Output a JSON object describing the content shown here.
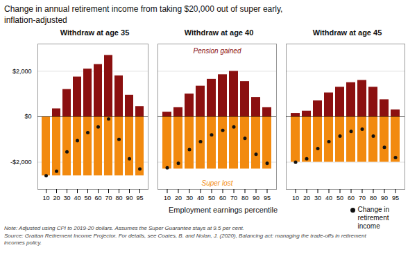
{
  "chart_data": {
    "type": "bar",
    "title": "Change in annual retirement income from taking $20,000 out of super early,\ninflation-adjusted",
    "xlabel": "Employment earnings percentile",
    "categories": [
      10,
      20,
      30,
      40,
      50,
      60,
      70,
      80,
      90,
      95
    ],
    "panels": [
      {
        "subtitle": "Withdraw at age 35",
        "series": [
          {
            "name": "Super lost",
            "color": "#F28A0F",
            "values": [
              -2600,
              -2600,
              -2600,
              -2600,
              -2600,
              -2600,
              -2600,
              -2600,
              -2600,
              -2600
            ]
          },
          {
            "name": "Pension gained",
            "color": "#8B1010",
            "values": [
              0,
              350,
              1200,
              1750,
              2100,
              2300,
              2700,
              1800,
              950,
              450
            ]
          },
          {
            "name": "Change in\nretirement income",
            "type": "scatter",
            "color": "#111111",
            "values": [
              -2600,
              -2400,
              -1550,
              -1050,
              -700,
              -450,
              -100,
              -1000,
              -1850,
              -2300
            ]
          }
        ]
      },
      {
        "subtitle": "Withdraw at age 40",
        "series": [
          {
            "name": "Super lost",
            "color": "#F28A0F",
            "values": [
              -2300,
              -2300,
              -2300,
              -2300,
              -2300,
              -2300,
              -2300,
              -2300,
              -2300,
              -2300
            ]
          },
          {
            "name": "Pension gained",
            "color": "#8B1010",
            "values": [
              200,
              400,
              1000,
              1350,
              1650,
              1850,
              2000,
              1550,
              850,
              400
            ]
          },
          {
            "name": "Change in\nretirement income",
            "type": "scatter",
            "color": "#111111",
            "values": [
              -2250,
              -2050,
              -1450,
              -1100,
              -800,
              -600,
              -450,
              -950,
              -1650,
              -2050
            ]
          }
        ]
      },
      {
        "subtitle": "Withdraw at age 45",
        "series": [
          {
            "name": "Super lost",
            "color": "#F28A0F",
            "values": [
              -2000,
              -2000,
              -2000,
              -2000,
              -2000,
              -2000,
              -2000,
              -2000,
              -2000,
              -2000
            ]
          },
          {
            "name": "Pension gained",
            "color": "#8B1010",
            "values": [
              150,
              250,
              700,
              1050,
              1300,
              1500,
              1600,
              1300,
              750,
              300
            ]
          },
          {
            "name": "Change in\nretirement income",
            "type": "scatter",
            "color": "#111111",
            "values": [
              -2000,
              -1850,
              -1400,
              -1100,
              -850,
              -650,
              -550,
              -850,
              -1350,
              -1800
            ]
          }
        ]
      }
    ],
    "ylim": [
      -3200,
      3200
    ],
    "yticks": [
      {
        "value": -2000,
        "label": "-$2,000"
      },
      {
        "value": 0,
        "label": "$0"
      },
      {
        "value": 2000,
        "label": "$2,000"
      }
    ],
    "grid": true,
    "legend": "lower right",
    "note": "Note: Adjusted using CPI to 2019-20 dollars. Assumes the Super Guarantee stays at 9.5 per cent.\nSource: Grattan Retirement Income Projector. For details, see Coates, B. and Nolan, J. (2020), Balancing act: managing the trade-offs in retirement\nincomes policy."
  }
}
